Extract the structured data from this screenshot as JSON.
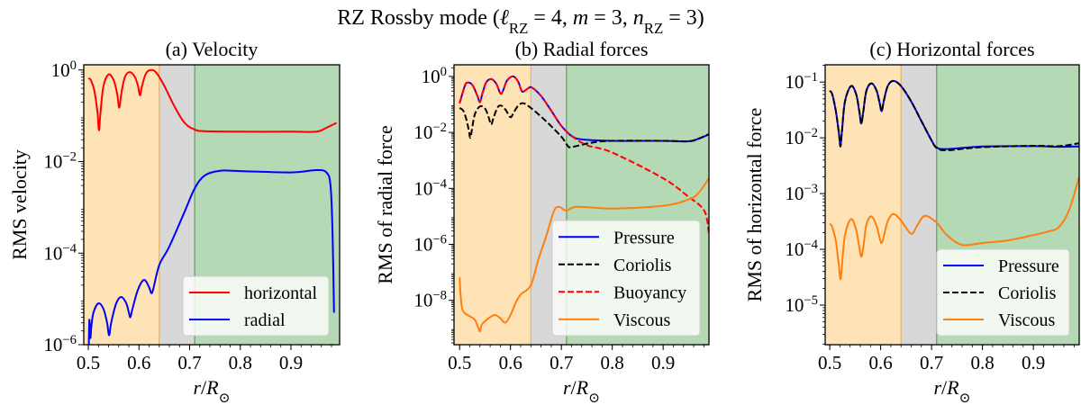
{
  "title": "RZ Rossby mode (ℓ_RZ = 4, m = 3, n_RZ = 3)",
  "zone_colors": {
    "inner": "#fde3b6",
    "tachocline": "#d8d8d8",
    "convection": "#b4d9b4",
    "inner_edge": "#e2b36a",
    "convection_edge": "#5f9e5f"
  },
  "zone_boundaries": [
    0.64,
    0.71
  ],
  "chart_data": [
    {
      "type": "line",
      "title": "(a) Velocity",
      "xlabel": "r/R_⊙",
      "ylabel": "RMS velocity",
      "yscale": "log",
      "xlim": [
        0.491,
        0.996
      ],
      "ylim": [
        1e-06,
        1.3
      ],
      "xticks": [
        "0.5",
        "0.6",
        "0.7",
        "0.8",
        "0.9"
      ],
      "yticks": [
        0,
        -2,
        -4,
        -6
      ],
      "legend": "lower-right",
      "series": [
        {
          "name": "horizontal",
          "color": "#ff0000",
          "dash": false,
          "x": [
            0.5,
            0.505,
            0.512,
            0.518,
            0.521,
            0.524,
            0.53,
            0.54,
            0.55,
            0.557,
            0.561,
            0.565,
            0.572,
            0.582,
            0.592,
            0.598,
            0.602,
            0.606,
            0.614,
            0.625,
            0.635,
            0.65,
            0.67,
            0.69,
            0.71,
            0.73,
            0.8,
            0.9,
            0.95,
            0.97,
            0.99
          ],
          "y": [
            0.66,
            0.6,
            0.35,
            0.12,
            0.048,
            0.12,
            0.45,
            0.8,
            0.6,
            0.3,
            0.15,
            0.3,
            0.7,
            0.9,
            0.7,
            0.45,
            0.28,
            0.45,
            0.85,
            1.0,
            0.85,
            0.45,
            0.16,
            0.07,
            0.05,
            0.046,
            0.045,
            0.045,
            0.045,
            0.055,
            0.07
          ]
        },
        {
          "name": "radial",
          "color": "#0000ff",
          "dash": false,
          "x": [
            0.501,
            0.502,
            0.504,
            0.506,
            0.51,
            0.52,
            0.53,
            0.537,
            0.541,
            0.545,
            0.555,
            0.565,
            0.575,
            0.58,
            0.583,
            0.587,
            0.598,
            0.61,
            0.62,
            0.624,
            0.628,
            0.64,
            0.66,
            0.69,
            0.71,
            0.73,
            0.76,
            0.8,
            0.9,
            0.95,
            0.97,
            0.978,
            0.982,
            0.985
          ],
          "y": [
            1e-06,
            3.5e-06,
            1.4e-06,
            2.5e-06,
            5e-06,
            8e-06,
            6e-06,
            3e-06,
            1.6e-06,
            3e-06,
            8e-06,
            1.1e-05,
            8e-06,
            5e-06,
            4e-06,
            6e-06,
            1.6e-05,
            2.6e-05,
            1.8e-05,
            1.35e-05,
            1.6e-05,
            5.5e-05,
            0.00014,
            0.0008,
            0.0026,
            0.005,
            0.0063,
            0.0062,
            0.0058,
            0.0065,
            0.0058,
            0.003,
            0.0003,
            5e-06
          ]
        }
      ]
    },
    {
      "type": "line",
      "title": "(b) Radial forces",
      "xlabel": "r/R_⊙",
      "ylabel": "RMS of radial force",
      "yscale": "log",
      "xlim": [
        0.489,
        0.99
      ],
      "ylim": [
        2.6e-10,
        2.6
      ],
      "xticks": [
        "0.5",
        "0.6",
        "0.7",
        "0.8",
        "0.9"
      ],
      "yticks": [
        0,
        -2,
        -4,
        -6,
        -8
      ],
      "legend": "lower-right",
      "series": [
        {
          "name": "Pressure",
          "color": "#0000ff",
          "dash": false,
          "x": [
            0.5,
            0.51,
            0.515,
            0.525,
            0.535,
            0.54,
            0.545,
            0.552,
            0.562,
            0.572,
            0.58,
            0.585,
            0.593,
            0.605,
            0.615,
            0.622,
            0.627,
            0.635,
            0.642,
            0.66,
            0.68,
            0.7,
            0.72,
            0.74,
            0.8,
            0.9,
            0.95,
            0.97,
            0.99
          ],
          "y": [
            0.11,
            0.45,
            0.6,
            0.5,
            0.2,
            0.12,
            0.25,
            0.6,
            0.8,
            0.55,
            0.25,
            0.3,
            0.7,
            1.0,
            0.65,
            0.3,
            0.3,
            0.38,
            0.4,
            0.2,
            0.06,
            0.017,
            0.0075,
            0.0056,
            0.005,
            0.005,
            0.0048,
            0.006,
            0.0085
          ]
        },
        {
          "name": "Coriolis",
          "color": "#000000",
          "dash": true,
          "x": [
            0.5,
            0.507,
            0.513,
            0.518,
            0.521,
            0.524,
            0.53,
            0.54,
            0.55,
            0.557,
            0.562,
            0.567,
            0.575,
            0.582,
            0.59,
            0.597,
            0.601,
            0.606,
            0.615,
            0.625,
            0.64,
            0.67,
            0.7,
            0.712,
            0.72,
            0.76,
            0.8,
            0.9,
            0.95,
            0.97,
            0.99
          ],
          "y": [
            0.075,
            0.06,
            0.03,
            0.012,
            0.0063,
            0.012,
            0.045,
            0.085,
            0.07,
            0.035,
            0.019,
            0.035,
            0.08,
            0.09,
            0.065,
            0.04,
            0.035,
            0.05,
            0.09,
            0.11,
            0.075,
            0.025,
            0.007,
            0.0034,
            0.003,
            0.0043,
            0.005,
            0.005,
            0.0048,
            0.006,
            0.0087
          ]
        },
        {
          "name": "Buoyancy",
          "color": "#ff0000",
          "dash": true,
          "x": [
            0.5,
            0.51,
            0.515,
            0.525,
            0.535,
            0.54,
            0.545,
            0.552,
            0.562,
            0.572,
            0.58,
            0.585,
            0.593,
            0.605,
            0.615,
            0.622,
            0.627,
            0.635,
            0.642,
            0.66,
            0.68,
            0.7,
            0.72,
            0.75,
            0.8,
            0.9,
            0.95,
            0.975,
            0.985,
            0.99
          ],
          "y": [
            0.11,
            0.45,
            0.6,
            0.5,
            0.2,
            0.12,
            0.25,
            0.6,
            0.8,
            0.55,
            0.25,
            0.3,
            0.7,
            1.0,
            0.65,
            0.3,
            0.3,
            0.38,
            0.4,
            0.2,
            0.06,
            0.017,
            0.0075,
            0.0035,
            0.0019,
            0.00023,
            5e-05,
            2.2e-05,
            1e-05,
            2.3e-06
          ]
        },
        {
          "name": "Viscous",
          "color": "#ff7f0e",
          "dash": false,
          "x": [
            0.5,
            0.502,
            0.505,
            0.51,
            0.52,
            0.53,
            0.537,
            0.54,
            0.543,
            0.55,
            0.56,
            0.57,
            0.58,
            0.59,
            0.6,
            0.61,
            0.62,
            0.64,
            0.655,
            0.67,
            0.685,
            0.695,
            0.71,
            0.73,
            0.8,
            0.9,
            0.95,
            0.97,
            0.99
          ],
          "y": [
            6.6e-08,
            1.5e-08,
            5e-09,
            3.5e-09,
            2.7e-09,
            2e-09,
            1e-09,
            7.8e-10,
            1.3e-09,
            1.8e-09,
            2.5e-09,
            3e-09,
            2.3e-09,
            1.6e-09,
            3e-09,
            8e-09,
            1.6e-08,
            3.5e-08,
            3e-07,
            1.9e-06,
            1.5e-05,
            2.2e-05,
            1.6e-05,
            2.2e-05,
            1.9e-05,
            2.4e-05,
            4e-05,
            7e-05,
            0.00023
          ]
        }
      ]
    },
    {
      "type": "line",
      "title": "(c) Horizontal forces",
      "xlabel": "r/R_⊙",
      "ylabel": "RMS of horizontal force",
      "yscale": "log",
      "xlim": [
        0.491,
        0.99
      ],
      "ylim": [
        1.95e-06,
        0.204
      ],
      "xticks": [
        "0.5",
        "0.6",
        "0.7",
        "0.8",
        "0.9"
      ],
      "yticks": [
        -1,
        -2,
        -3,
        -4,
        -5
      ],
      "legend": "lower-right",
      "series": [
        {
          "name": "Pressure",
          "color": "#0000ff",
          "dash": false,
          "x": [
            0.5,
            0.505,
            0.512,
            0.518,
            0.521,
            0.524,
            0.53,
            0.542,
            0.552,
            0.558,
            0.562,
            0.566,
            0.572,
            0.582,
            0.592,
            0.598,
            0.602,
            0.606,
            0.614,
            0.625,
            0.64,
            0.66,
            0.68,
            0.7,
            0.71,
            0.73,
            0.8,
            0.9,
            0.95,
            0.99
          ],
          "y": [
            0.07,
            0.06,
            0.03,
            0.012,
            0.007,
            0.013,
            0.045,
            0.085,
            0.06,
            0.03,
            0.018,
            0.03,
            0.07,
            0.095,
            0.07,
            0.042,
            0.03,
            0.045,
            0.085,
            0.105,
            0.085,
            0.045,
            0.02,
            0.009,
            0.0067,
            0.0063,
            0.007,
            0.0071,
            0.0069,
            0.007
          ]
        },
        {
          "name": "Coriolis",
          "color": "#000000",
          "dash": true,
          "x": [
            0.5,
            0.505,
            0.512,
            0.518,
            0.521,
            0.524,
            0.53,
            0.542,
            0.552,
            0.558,
            0.562,
            0.566,
            0.572,
            0.582,
            0.592,
            0.598,
            0.602,
            0.606,
            0.614,
            0.625,
            0.64,
            0.66,
            0.68,
            0.7,
            0.71,
            0.73,
            0.8,
            0.9,
            0.95,
            0.99
          ],
          "y": [
            0.07,
            0.06,
            0.03,
            0.012,
            0.007,
            0.013,
            0.045,
            0.085,
            0.06,
            0.03,
            0.018,
            0.03,
            0.07,
            0.095,
            0.07,
            0.042,
            0.03,
            0.045,
            0.085,
            0.105,
            0.085,
            0.045,
            0.02,
            0.009,
            0.0066,
            0.006,
            0.0068,
            0.0072,
            0.0071,
            0.008
          ]
        },
        {
          "name": "Viscous",
          "color": "#ff7f0e",
          "dash": false,
          "x": [
            0.5,
            0.505,
            0.512,
            0.518,
            0.521,
            0.524,
            0.53,
            0.542,
            0.552,
            0.558,
            0.562,
            0.566,
            0.572,
            0.582,
            0.592,
            0.598,
            0.602,
            0.606,
            0.614,
            0.625,
            0.64,
            0.66,
            0.672,
            0.687,
            0.71,
            0.73,
            0.76,
            0.8,
            0.85,
            0.9,
            0.93,
            0.95,
            0.97,
            0.99
          ],
          "y": [
            0.00029,
            0.00025,
            0.00014,
            5e-05,
            2.9e-05,
            5e-05,
            0.00018,
            0.00035,
            0.00022,
            0.00011,
            7.4e-05,
            0.00011,
            0.00028,
            0.00039,
            0.00026,
            0.00016,
            0.00013,
            0.00017,
            0.00032,
            0.00043,
            0.00033,
            0.00019,
            0.00027,
            0.0004,
            0.0003,
            0.00018,
            0.00012,
            0.00013,
            0.000145,
            0.00018,
            0.00021,
            0.00025,
            0.0005,
            0.002
          ]
        }
      ]
    }
  ]
}
